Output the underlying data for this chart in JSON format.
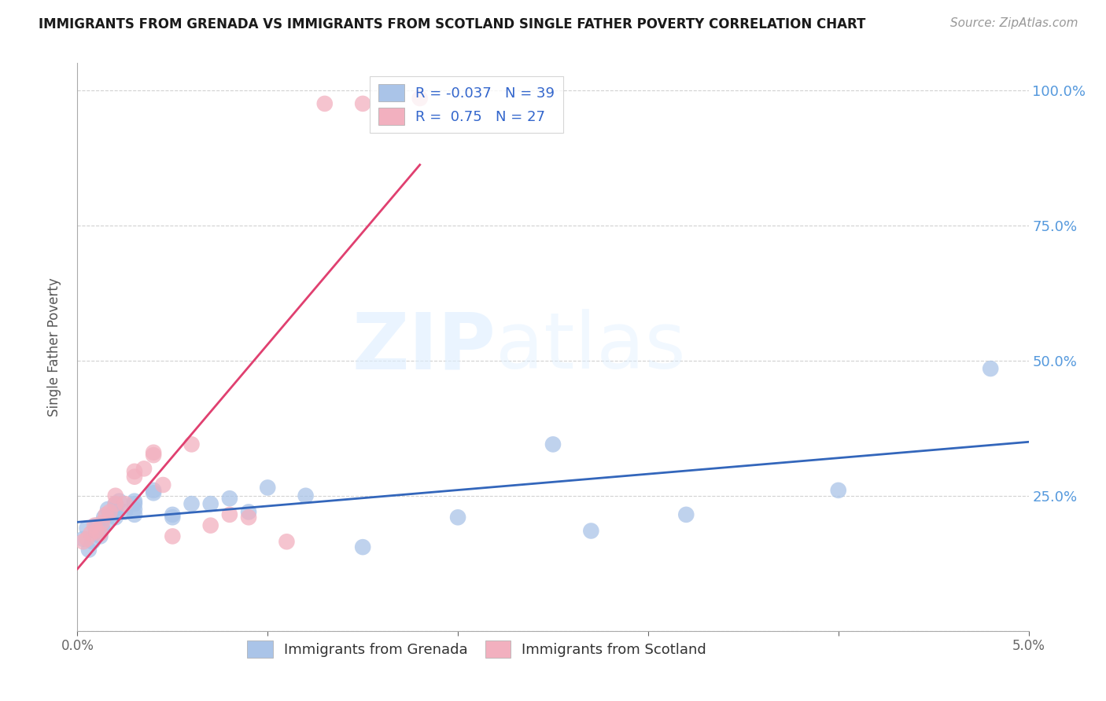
{
  "title": "IMMIGRANTS FROM GRENADA VS IMMIGRANTS FROM SCOTLAND SINGLE FATHER POVERTY CORRELATION CHART",
  "source": "Source: ZipAtlas.com",
  "ylabel": "Single Father Poverty",
  "grenada_R": -0.037,
  "grenada_N": 39,
  "scotland_R": 0.75,
  "scotland_N": 27,
  "grenada_color": "#aac4e8",
  "scotland_color": "#f2b0bf",
  "trendline_grenada_color": "#3366bb",
  "trendline_scotland_color": "#e04070",
  "watermark_zip": "ZIP",
  "watermark_atlas": "atlas",
  "grenada_x": [
    0.0003,
    0.0005,
    0.0006,
    0.0008,
    0.001,
    0.001,
    0.0012,
    0.0013,
    0.0014,
    0.0015,
    0.0016,
    0.0018,
    0.002,
    0.002,
    0.002,
    0.002,
    0.0022,
    0.0025,
    0.003,
    0.003,
    0.003,
    0.003,
    0.004,
    0.004,
    0.005,
    0.005,
    0.006,
    0.007,
    0.008,
    0.009,
    0.01,
    0.012,
    0.015,
    0.02,
    0.025,
    0.027,
    0.032,
    0.04,
    0.048
  ],
  "grenada_y": [
    0.17,
    0.19,
    0.15,
    0.165,
    0.185,
    0.195,
    0.175,
    0.19,
    0.21,
    0.2,
    0.225,
    0.215,
    0.225,
    0.21,
    0.22,
    0.235,
    0.24,
    0.22,
    0.235,
    0.225,
    0.215,
    0.24,
    0.255,
    0.26,
    0.215,
    0.21,
    0.235,
    0.235,
    0.245,
    0.22,
    0.265,
    0.25,
    0.155,
    0.21,
    0.345,
    0.185,
    0.215,
    0.26,
    0.485
  ],
  "scotland_x": [
    0.0003,
    0.0005,
    0.0007,
    0.0009,
    0.001,
    0.0012,
    0.0013,
    0.0015,
    0.0017,
    0.002,
    0.002,
    0.0025,
    0.003,
    0.003,
    0.0035,
    0.004,
    0.004,
    0.0045,
    0.005,
    0.006,
    0.007,
    0.008,
    0.009,
    0.011,
    0.013,
    0.015,
    0.018
  ],
  "scotland_y": [
    0.165,
    0.17,
    0.18,
    0.195,
    0.185,
    0.18,
    0.2,
    0.215,
    0.22,
    0.235,
    0.25,
    0.235,
    0.285,
    0.295,
    0.3,
    0.325,
    0.33,
    0.27,
    0.175,
    0.345,
    0.195,
    0.215,
    0.21,
    0.165,
    0.975,
    0.975,
    0.985
  ],
  "background_color": "#ffffff",
  "xlim": [
    0,
    0.05
  ],
  "ylim": [
    0,
    1.05
  ],
  "x_ticks": [
    0.0,
    0.01,
    0.02,
    0.03,
    0.04,
    0.05
  ],
  "y_ticks": [
    0.0,
    0.25,
    0.5,
    0.75,
    1.0
  ],
  "y_tick_labels": [
    "",
    "25.0%",
    "50.0%",
    "75.0%",
    "100.0%"
  ],
  "x_tick_labels": [
    "0.0%",
    "",
    "",
    "",
    "",
    "5.0%"
  ]
}
